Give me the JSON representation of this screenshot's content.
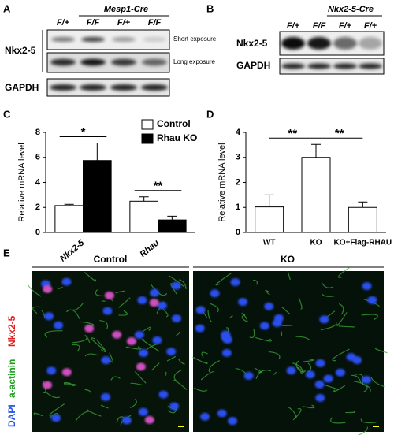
{
  "panel_labels": [
    "A",
    "B",
    "C",
    "D",
    "E"
  ],
  "blot_a": {
    "group_label": "Mesp1-Cre",
    "lanes": [
      "F/+",
      "F/F",
      "F/+",
      "F/F"
    ],
    "row_label": "Nkx2-5",
    "exposures": [
      "Short exposure",
      "Long exposure"
    ],
    "loading_label": "GAPDH"
  },
  "blot_b": {
    "group_label": "Nkx2-5-Cre",
    "lanes": [
      "F/+",
      "F/F",
      "F/+",
      "F/+"
    ],
    "row_label": "Nkx2-5",
    "loading_label": "GAPDH"
  },
  "chart_data": [
    {
      "type": "bar",
      "y_label": "Relative mRNA level",
      "categories": [
        "Nkx2-5",
        "Rhau"
      ],
      "series": [
        {
          "name": "Control",
          "color": "#ffffff",
          "values": [
            2.15,
            2.5
          ],
          "errors": [
            0.1,
            0.35
          ]
        },
        {
          "name": "Rhau KO",
          "color": "#000000",
          "values": [
            5.75,
            1.0
          ],
          "errors": [
            1.4,
            0.3
          ]
        }
      ],
      "ylim": [
        0,
        8
      ],
      "yticks": [
        0,
        2,
        4,
        6,
        8
      ],
      "annotations": [
        "*",
        "**"
      ]
    },
    {
      "type": "bar",
      "y_label": "Relative mRNA level",
      "categories": [
        "WT",
        "KO",
        "KO+Flag-RHAU"
      ],
      "series": [
        {
          "color": "#ffffff",
          "values": [
            1.02,
            3.0,
            1.0
          ],
          "errors": [
            0.48,
            0.52,
            0.22
          ]
        }
      ],
      "ylim": [
        0,
        4
      ],
      "yticks": [
        0,
        1,
        2,
        3,
        4
      ],
      "annotations": [
        "**",
        "**"
      ]
    }
  ],
  "imaging": {
    "columns": [
      "Control",
      "KO"
    ],
    "channels": [
      "Nkx2-5",
      "a-actinin",
      "DAPI"
    ]
  }
}
